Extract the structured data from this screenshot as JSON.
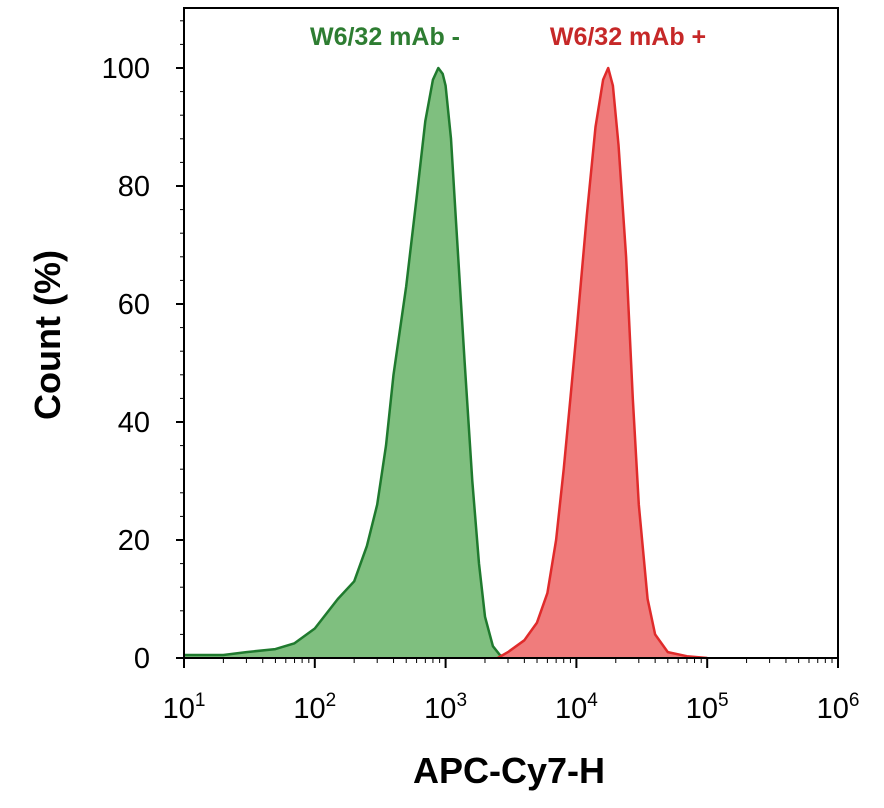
{
  "chart_data": {
    "type": "area",
    "xlabel": "APC-Cy7-H",
    "ylabel": "Count (%)",
    "x_scale": "log",
    "xlim": [
      10,
      1000000
    ],
    "ylim": [
      0,
      110
    ],
    "x_ticks": [
      {
        "value": 10,
        "base": "10",
        "exp": "1"
      },
      {
        "value": 100,
        "base": "10",
        "exp": "2"
      },
      {
        "value": 1000,
        "base": "10",
        "exp": "3"
      },
      {
        "value": 10000,
        "base": "10",
        "exp": "4"
      },
      {
        "value": 100000,
        "base": "10",
        "exp": "5"
      },
      {
        "value": 1000000,
        "base": "10",
        "exp": "6"
      }
    ],
    "y_ticks": [
      {
        "value": 0,
        "label": "0"
      },
      {
        "value": 20,
        "label": "20"
      },
      {
        "value": 40,
        "label": "40"
      },
      {
        "value": 60,
        "label": "60"
      },
      {
        "value": 80,
        "label": "80"
      },
      {
        "value": 100,
        "label": "100"
      }
    ],
    "grid": false,
    "legend_position": "top",
    "series": [
      {
        "name": "W6/32 mAb -",
        "line_color": "#1f7a2e",
        "fill_color": "#7fbf7f",
        "points": [
          [
            10,
            0.5
          ],
          [
            20,
            0.5
          ],
          [
            30,
            1
          ],
          [
            50,
            1.5
          ],
          [
            70,
            2.5
          ],
          [
            100,
            5
          ],
          [
            150,
            10
          ],
          [
            200,
            13
          ],
          [
            250,
            19
          ],
          [
            300,
            26
          ],
          [
            350,
            36
          ],
          [
            400,
            48
          ],
          [
            500,
            63
          ],
          [
            600,
            78
          ],
          [
            700,
            91
          ],
          [
            800,
            98
          ],
          [
            880,
            100
          ],
          [
            950,
            99
          ],
          [
            1000,
            97
          ],
          [
            1100,
            88
          ],
          [
            1200,
            74
          ],
          [
            1400,
            50
          ],
          [
            1600,
            30
          ],
          [
            1800,
            16
          ],
          [
            2000,
            7
          ],
          [
            2300,
            2
          ],
          [
            2600,
            0.5
          ],
          [
            3000,
            0
          ]
        ]
      },
      {
        "name": "W6/32 mAb +",
        "line_color": "#e02b2b",
        "fill_color": "#f07c7c",
        "points": [
          [
            2500,
            0
          ],
          [
            3000,
            1
          ],
          [
            4000,
            3
          ],
          [
            5000,
            6
          ],
          [
            6000,
            11
          ],
          [
            7000,
            20
          ],
          [
            8000,
            32
          ],
          [
            9000,
            44
          ],
          [
            10000,
            55
          ],
          [
            12000,
            75
          ],
          [
            14000,
            90
          ],
          [
            16000,
            98
          ],
          [
            17500,
            100
          ],
          [
            19000,
            97
          ],
          [
            21000,
            87
          ],
          [
            24000,
            68
          ],
          [
            27000,
            44
          ],
          [
            30000,
            26
          ],
          [
            35000,
            10
          ],
          [
            40000,
            4
          ],
          [
            50000,
            1
          ],
          [
            70000,
            0.3
          ],
          [
            100000,
            0
          ]
        ]
      }
    ]
  }
}
